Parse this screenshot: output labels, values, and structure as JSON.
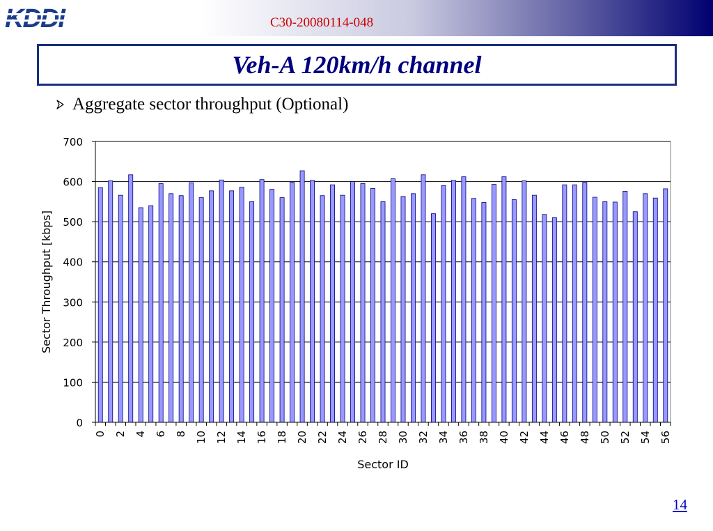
{
  "header": {
    "doc_id": "C30-20080114-048",
    "logo_text": "KDDI",
    "colors": {
      "logo": "#1a3c8c",
      "doc_id": "#cc0000",
      "band_end": "#000070"
    }
  },
  "slide": {
    "title": "Veh-A 120km/h channel",
    "bullet": "Aggregate sector throughput (Optional)",
    "page_number": "14"
  },
  "chart_data": {
    "type": "bar",
    "categories": [
      "0",
      "1",
      "2",
      "3",
      "4",
      "5",
      "6",
      "7",
      "8",
      "9",
      "10",
      "11",
      "12",
      "13",
      "14",
      "15",
      "16",
      "17",
      "18",
      "19",
      "20",
      "21",
      "22",
      "23",
      "24",
      "25",
      "26",
      "27",
      "28",
      "29",
      "30",
      "31",
      "32",
      "33",
      "34",
      "35",
      "36",
      "37",
      "38",
      "39",
      "40",
      "41",
      "42",
      "43",
      "44",
      "45",
      "46",
      "47",
      "48",
      "49",
      "50",
      "51",
      "52",
      "53",
      "54",
      "55",
      "56"
    ],
    "tick_labels": [
      "0",
      "2",
      "4",
      "6",
      "8",
      "10",
      "12",
      "14",
      "16",
      "18",
      "20",
      "22",
      "24",
      "26",
      "28",
      "30",
      "32",
      "34",
      "36",
      "38",
      "40",
      "42",
      "44",
      "46",
      "48",
      "50",
      "52",
      "54",
      "56"
    ],
    "values": [
      585,
      602,
      566,
      617,
      535,
      540,
      595,
      570,
      565,
      597,
      560,
      577,
      604,
      577,
      586,
      550,
      605,
      581,
      560,
      598,
      627,
      603,
      565,
      592,
      566,
      600,
      595,
      583,
      550,
      607,
      563,
      570,
      617,
      520,
      590,
      603,
      612,
      558,
      548,
      593,
      612,
      555,
      602,
      566,
      518,
      510,
      592,
      592,
      598,
      561,
      550,
      549,
      576,
      525,
      570,
      559,
      582
    ],
    "xlabel": "Sector ID",
    "ylabel": "Sector Throughput [kbps]",
    "ylim": [
      0,
      700
    ],
    "yticks": [
      "0",
      "100",
      "200",
      "300",
      "400",
      "500",
      "600",
      "700"
    ],
    "grid": true,
    "bar_color": "#9999ff"
  }
}
